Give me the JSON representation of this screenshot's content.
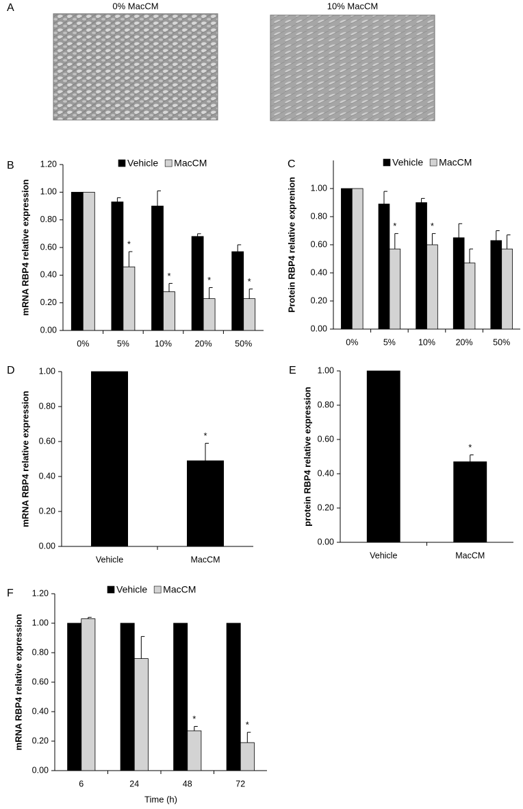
{
  "panel_a": {
    "letter": "A",
    "images": [
      {
        "label": "0% MacCM"
      },
      {
        "label": "10% MacCM"
      }
    ]
  },
  "chart_data": [
    {
      "panel": "B",
      "type": "bar",
      "ylabel": "mRNA RBP4 relative expression",
      "categories": [
        "0%",
        "5%",
        "10%",
        "20%",
        "50%"
      ],
      "series": [
        {
          "name": "Vehicle",
          "color": "#000000",
          "values": [
            1.0,
            0.93,
            0.9,
            0.68,
            0.57
          ],
          "errors": [
            null,
            0.03,
            0.11,
            0.02,
            0.05
          ],
          "value_annotations": [
            null,
            null,
            null,
            null,
            null
          ]
        },
        {
          "name": "MacCM",
          "color": "#d3d3d3",
          "values": [
            1.0,
            0.46,
            0.28,
            0.23,
            0.23
          ],
          "errors": [
            null,
            0.11,
            0.06,
            0.08,
            0.07
          ],
          "value_annotations": [
            null,
            "*",
            "*",
            "*",
            "*"
          ]
        }
      ],
      "ylim": [
        0,
        1.2
      ],
      "yticks": [
        {
          "value": 0,
          "label": "0.00"
        },
        {
          "value": 0.2,
          "label": "0.20"
        },
        {
          "value": 0.4,
          "label": "0.40"
        },
        {
          "value": 0.6,
          "label": "0.60"
        },
        {
          "value": 0.8,
          "label": "0.80"
        },
        {
          "value": 1.0,
          "label": "1.00"
        },
        {
          "value": 1.2,
          "label": "1.20"
        }
      ]
    },
    {
      "panel": "C",
      "type": "bar",
      "ylabel": "Protein RBP4 relative exprenion",
      "categories": [
        "0%",
        "5%",
        "10%",
        "20%",
        "50%"
      ],
      "series": [
        {
          "name": "Vehicle",
          "color": "#000000",
          "values": [
            1.0,
            0.89,
            0.9,
            0.65,
            0.63
          ],
          "errors": [
            null,
            0.09,
            0.03,
            0.1,
            0.07
          ],
          "value_annotations": [
            null,
            null,
            null,
            null,
            null
          ]
        },
        {
          "name": "MacCM",
          "color": "#d3d3d3",
          "values": [
            1.0,
            0.57,
            0.6,
            0.47,
            0.57
          ],
          "errors": [
            null,
            0.11,
            0.08,
            0.1,
            0.1
          ],
          "value_annotations": [
            null,
            "*",
            "*",
            null,
            null
          ]
        }
      ],
      "ylim": [
        0,
        1.2
      ],
      "yticks": [
        {
          "value": 0,
          "label": "0.00"
        },
        {
          "value": 0.2,
          "label": "0.20"
        },
        {
          "value": 0.4,
          "label": "0.40"
        },
        {
          "value": 0.6,
          "label": "0.60"
        },
        {
          "value": 0.8,
          "label": "0.80"
        },
        {
          "value": 1.0,
          "label": "1.00"
        }
      ]
    },
    {
      "panel": "D",
      "type": "bar",
      "ylabel": "mRNA RBP4 relative expression",
      "categories": [
        "Vehicle",
        "MacCM"
      ],
      "series": [
        {
          "color": "#000000",
          "values": [
            1.0,
            0.49
          ],
          "errors": [
            null,
            0.1
          ],
          "value_annotations": [
            null,
            "*"
          ]
        }
      ],
      "ylim": [
        0,
        1.0
      ],
      "yticks": [
        {
          "value": 0,
          "label": "0.00"
        },
        {
          "value": 0.2,
          "label": "0.20"
        },
        {
          "value": 0.4,
          "label": "0.40"
        },
        {
          "value": 0.6,
          "label": "0.60"
        },
        {
          "value": 0.8,
          "label": "0.80"
        },
        {
          "value": 1.0,
          "label": "1.00"
        }
      ]
    },
    {
      "panel": "E",
      "type": "bar",
      "ylabel": "protein RBP4 relative expression",
      "categories": [
        "Vehicle",
        "MacCM"
      ],
      "series": [
        {
          "color": "#000000",
          "values": [
            1.0,
            0.47
          ],
          "errors": [
            null,
            0.04
          ],
          "value_annotations": [
            null,
            "*"
          ]
        }
      ],
      "ylim": [
        0,
        1.0
      ],
      "yticks": [
        {
          "value": 0,
          "label": "0.00"
        },
        {
          "value": 0.2,
          "label": "0.20"
        },
        {
          "value": 0.4,
          "label": "0.40"
        },
        {
          "value": 0.6,
          "label": "0.60"
        },
        {
          "value": 0.8,
          "label": "0.80"
        },
        {
          "value": 1.0,
          "label": "1.00"
        }
      ]
    },
    {
      "panel": "F",
      "type": "bar",
      "ylabel": "mRNA RBP4 relative expression",
      "xlabel": "Time (h)",
      "categories": [
        "6",
        "24",
        "48",
        "72"
      ],
      "series": [
        {
          "name": "Vehicle",
          "color": "#000000",
          "values": [
            1.0,
            1.0,
            1.0,
            1.0
          ],
          "errors": [
            null,
            null,
            null,
            null
          ],
          "value_annotations": [
            null,
            null,
            null,
            null
          ]
        },
        {
          "name": "MacCM",
          "color": "#d3d3d3",
          "values": [
            1.03,
            0.76,
            0.27,
            0.19
          ],
          "errors": [
            0.01,
            0.15,
            0.03,
            0.07
          ],
          "value_annotations": [
            null,
            null,
            "*",
            "*"
          ]
        }
      ],
      "ylim": [
        0,
        1.2
      ],
      "yticks": [
        {
          "value": 0,
          "label": "0.00"
        },
        {
          "value": 0.2,
          "label": "0.20"
        },
        {
          "value": 0.4,
          "label": "0.40"
        },
        {
          "value": 0.6,
          "label": "0.60"
        },
        {
          "value": 0.8,
          "label": "0.80"
        },
        {
          "value": 1.0,
          "label": "1.00"
        },
        {
          "value": 1.2,
          "label": "1.20"
        }
      ]
    }
  ]
}
